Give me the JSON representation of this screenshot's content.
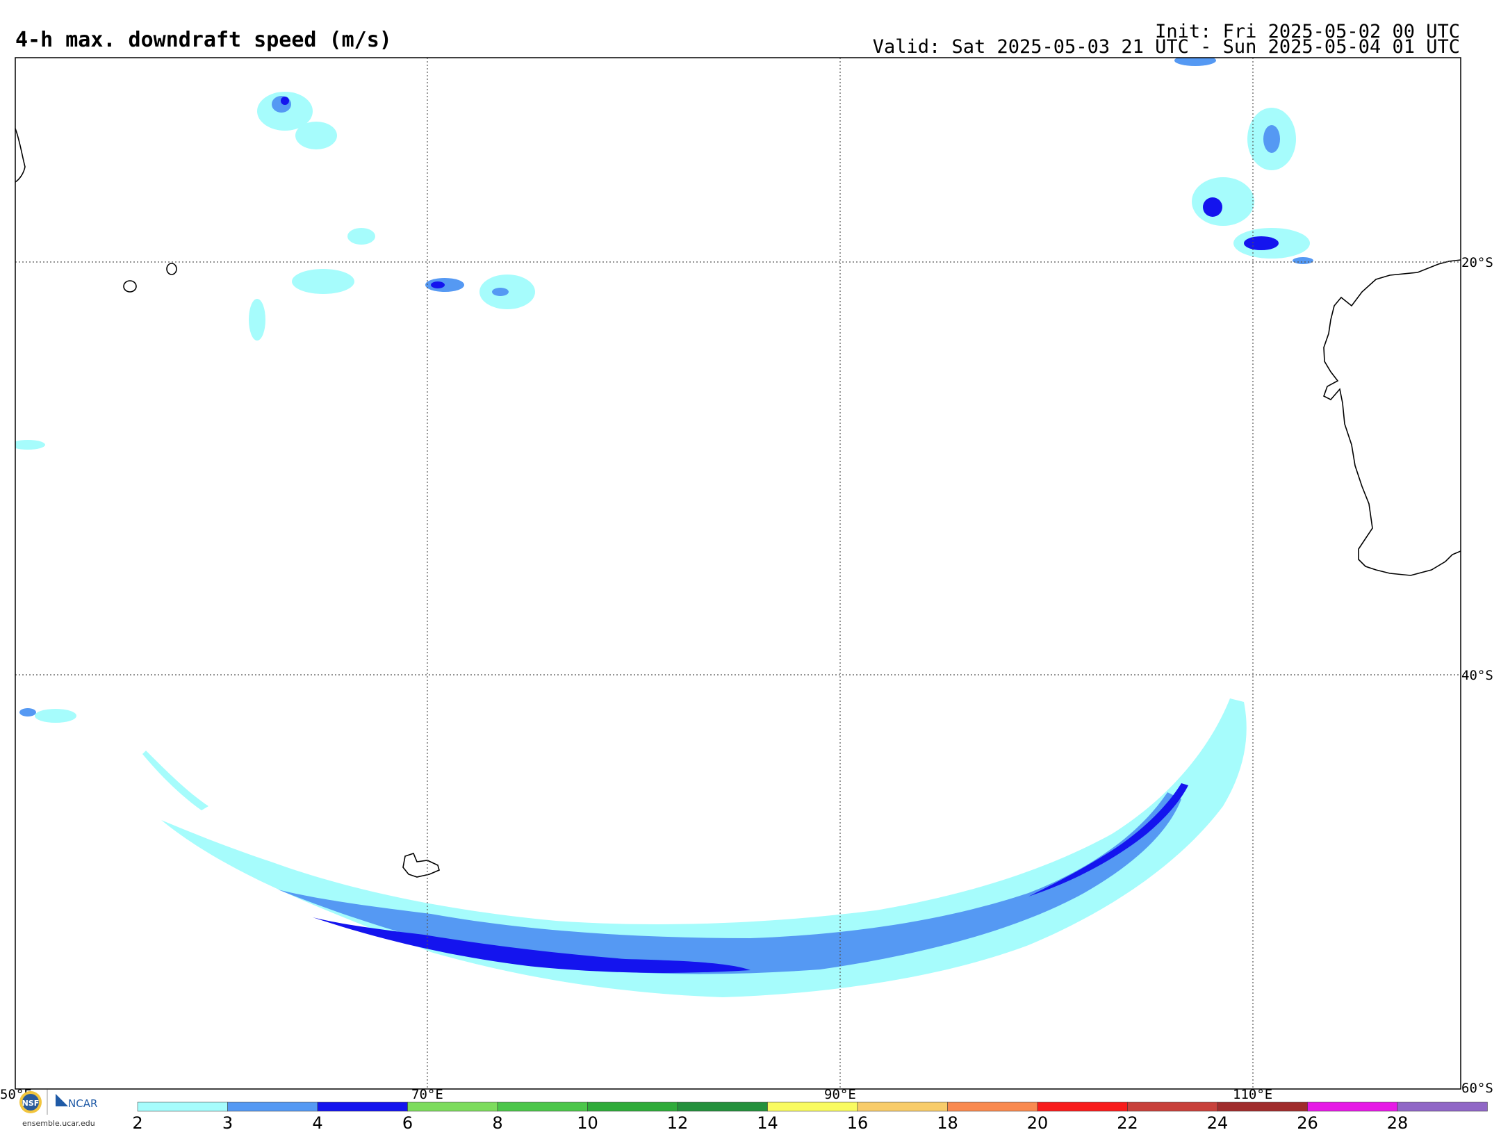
{
  "header": {
    "title": "4-h max. downdraft speed (m/s)",
    "init": "Init: Fri 2025-05-02 00 UTC",
    "valid": "Valid: Sat 2025-05-03 21 UTC - Sun 2025-05-04 01 UTC"
  },
  "map": {
    "extent": {
      "lon": [
        50,
        120
      ],
      "lat": [
        -10,
        -60
      ]
    },
    "lon_labels": [
      "50°E",
      "70°E",
      "90°E",
      "110°E"
    ],
    "lat_labels": [
      "20°S",
      "40°S",
      "60°S"
    ],
    "gridlines": "dotted"
  },
  "colorbar": {
    "ticks": [
      "2",
      "3",
      "4",
      "6",
      "8",
      "10",
      "12",
      "14",
      "16",
      "18",
      "20",
      "22",
      "24",
      "26",
      "28"
    ],
    "colors": [
      "#a6fcfc",
      "#5599f3",
      "#1414ee",
      "#7ddc5d",
      "#4cc64a",
      "#2fab3a",
      "#24903c",
      "#f9fb61",
      "#f8cc6a",
      "#f98a50",
      "#f81c1c",
      "#c8413b",
      "#a02c2c",
      "#e61ae6",
      "#9067c6"
    ]
  },
  "logos": {
    "left_logo": "NSF",
    "right_logo": "NCAR",
    "url": "ensemble.ucar.edu"
  }
}
